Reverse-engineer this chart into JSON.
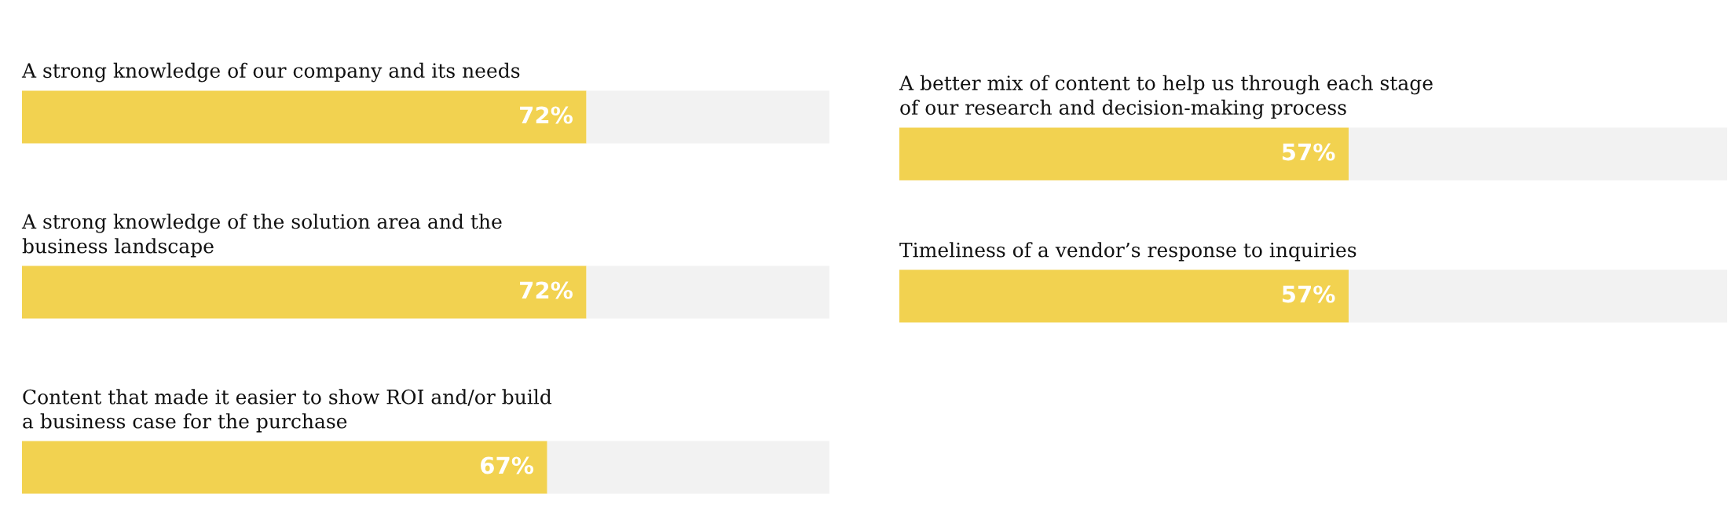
{
  "chart_data": [
    {
      "type": "bar",
      "orientation": "horizontal",
      "stacked": true,
      "categories": [
        "A strong knowledge of our company and its needs",
        "A strong knowledge of the solution area and the\nbusiness landscape",
        "Content that made it easier to show ROI and/or build\na business case for the purchase"
      ],
      "series": [
        {
          "color": "#f2d250",
          "values": [
            72,
            72,
            67
          ],
          "value_labels": [
            "72%",
            "72%",
            "67%"
          ]
        },
        {
          "color": "#f2f2f2",
          "values": [
            31,
            31,
            36
          ]
        }
      ]
    },
    {
      "type": "bar",
      "orientation": "horizontal",
      "stacked": true,
      "categories": [
        "A better mix of content to help us through each stage\nof our research and decision-making process",
        "Timeliness of a vendor’s response to inquiries"
      ],
      "series": [
        {
          "color": "#f2d250",
          "values": [
            57,
            57
          ],
          "value_labels": [
            "57%",
            "57%"
          ]
        },
        {
          "color": "#f2f2f2",
          "values": [
            48,
            48
          ]
        }
      ]
    }
  ]
}
